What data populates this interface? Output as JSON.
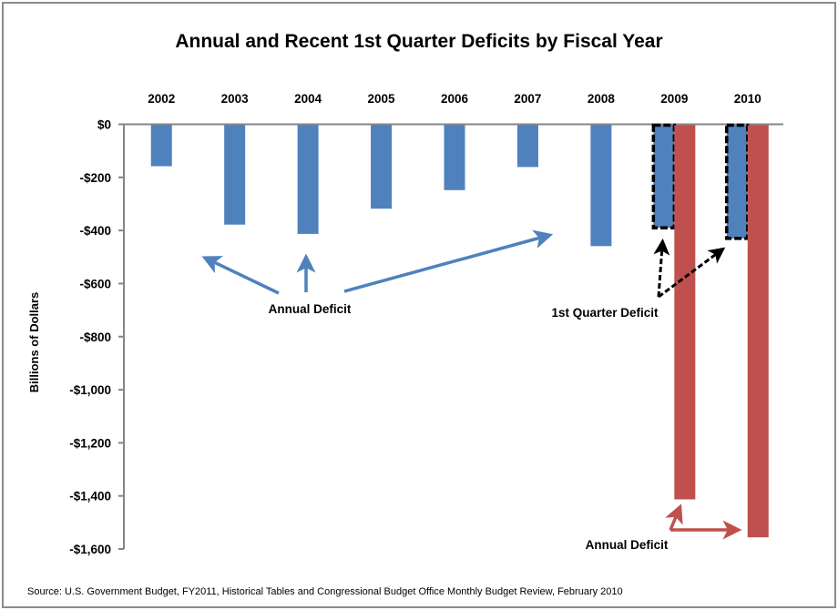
{
  "chart_data": {
    "type": "bar",
    "title": "Annual and Recent 1st Quarter Deficits by Fiscal Year",
    "xlabel": "",
    "ylabel": "Billions of Dollars",
    "categories": [
      "2002",
      "2003",
      "2004",
      "2005",
      "2006",
      "2007",
      "2008",
      "2009",
      "2010"
    ],
    "ylim": [
      -1600,
      0
    ],
    "yticks": [
      0,
      -200,
      -400,
      -600,
      -800,
      -1000,
      -1200,
      -1400,
      -1600
    ],
    "ytick_labels": [
      "$0",
      "-$200",
      "-$400",
      "-$600",
      "-$800",
      "-$1,000",
      "-$1,200",
      "-$1,400",
      "-$1,600"
    ],
    "x_tick_position": "top",
    "grid": false,
    "legend": "none",
    "series": [
      {
        "name": "Annual Deficit (through 2008)",
        "color": "#4f81bd",
        "values": [
          -158,
          -378,
          -413,
          -318,
          -248,
          -161,
          -459,
          null,
          null
        ]
      },
      {
        "name": "1st Quarter Deficit",
        "color": "#4f81bd",
        "outline": "dashed-black",
        "values": [
          null,
          null,
          null,
          null,
          null,
          null,
          null,
          -390,
          -430
        ]
      },
      {
        "name": "Annual Deficit (2009-2010)",
        "color": "#c0504d",
        "values": [
          null,
          null,
          null,
          null,
          null,
          null,
          null,
          -1413,
          -1556
        ]
      }
    ],
    "annotations": [
      {
        "text": "Annual Deficit",
        "color": "#4f81bd",
        "points_to": [
          "2002",
          "2004",
          "2008"
        ],
        "arrow_style": "solid"
      },
      {
        "text": "1st Quarter Deficit",
        "color": "#000000",
        "points_to": [
          "2009",
          "2010"
        ],
        "arrow_style": "dashed"
      },
      {
        "text": "Annual Deficit",
        "color": "#c0504d",
        "points_to": [
          "2009",
          "2010"
        ],
        "arrow_style": "solid"
      }
    ],
    "source": "Source: U.S. Government Budget, FY2011, Historical Tables and Congressional Budget Office Monthly Budget Review, February 2010"
  }
}
